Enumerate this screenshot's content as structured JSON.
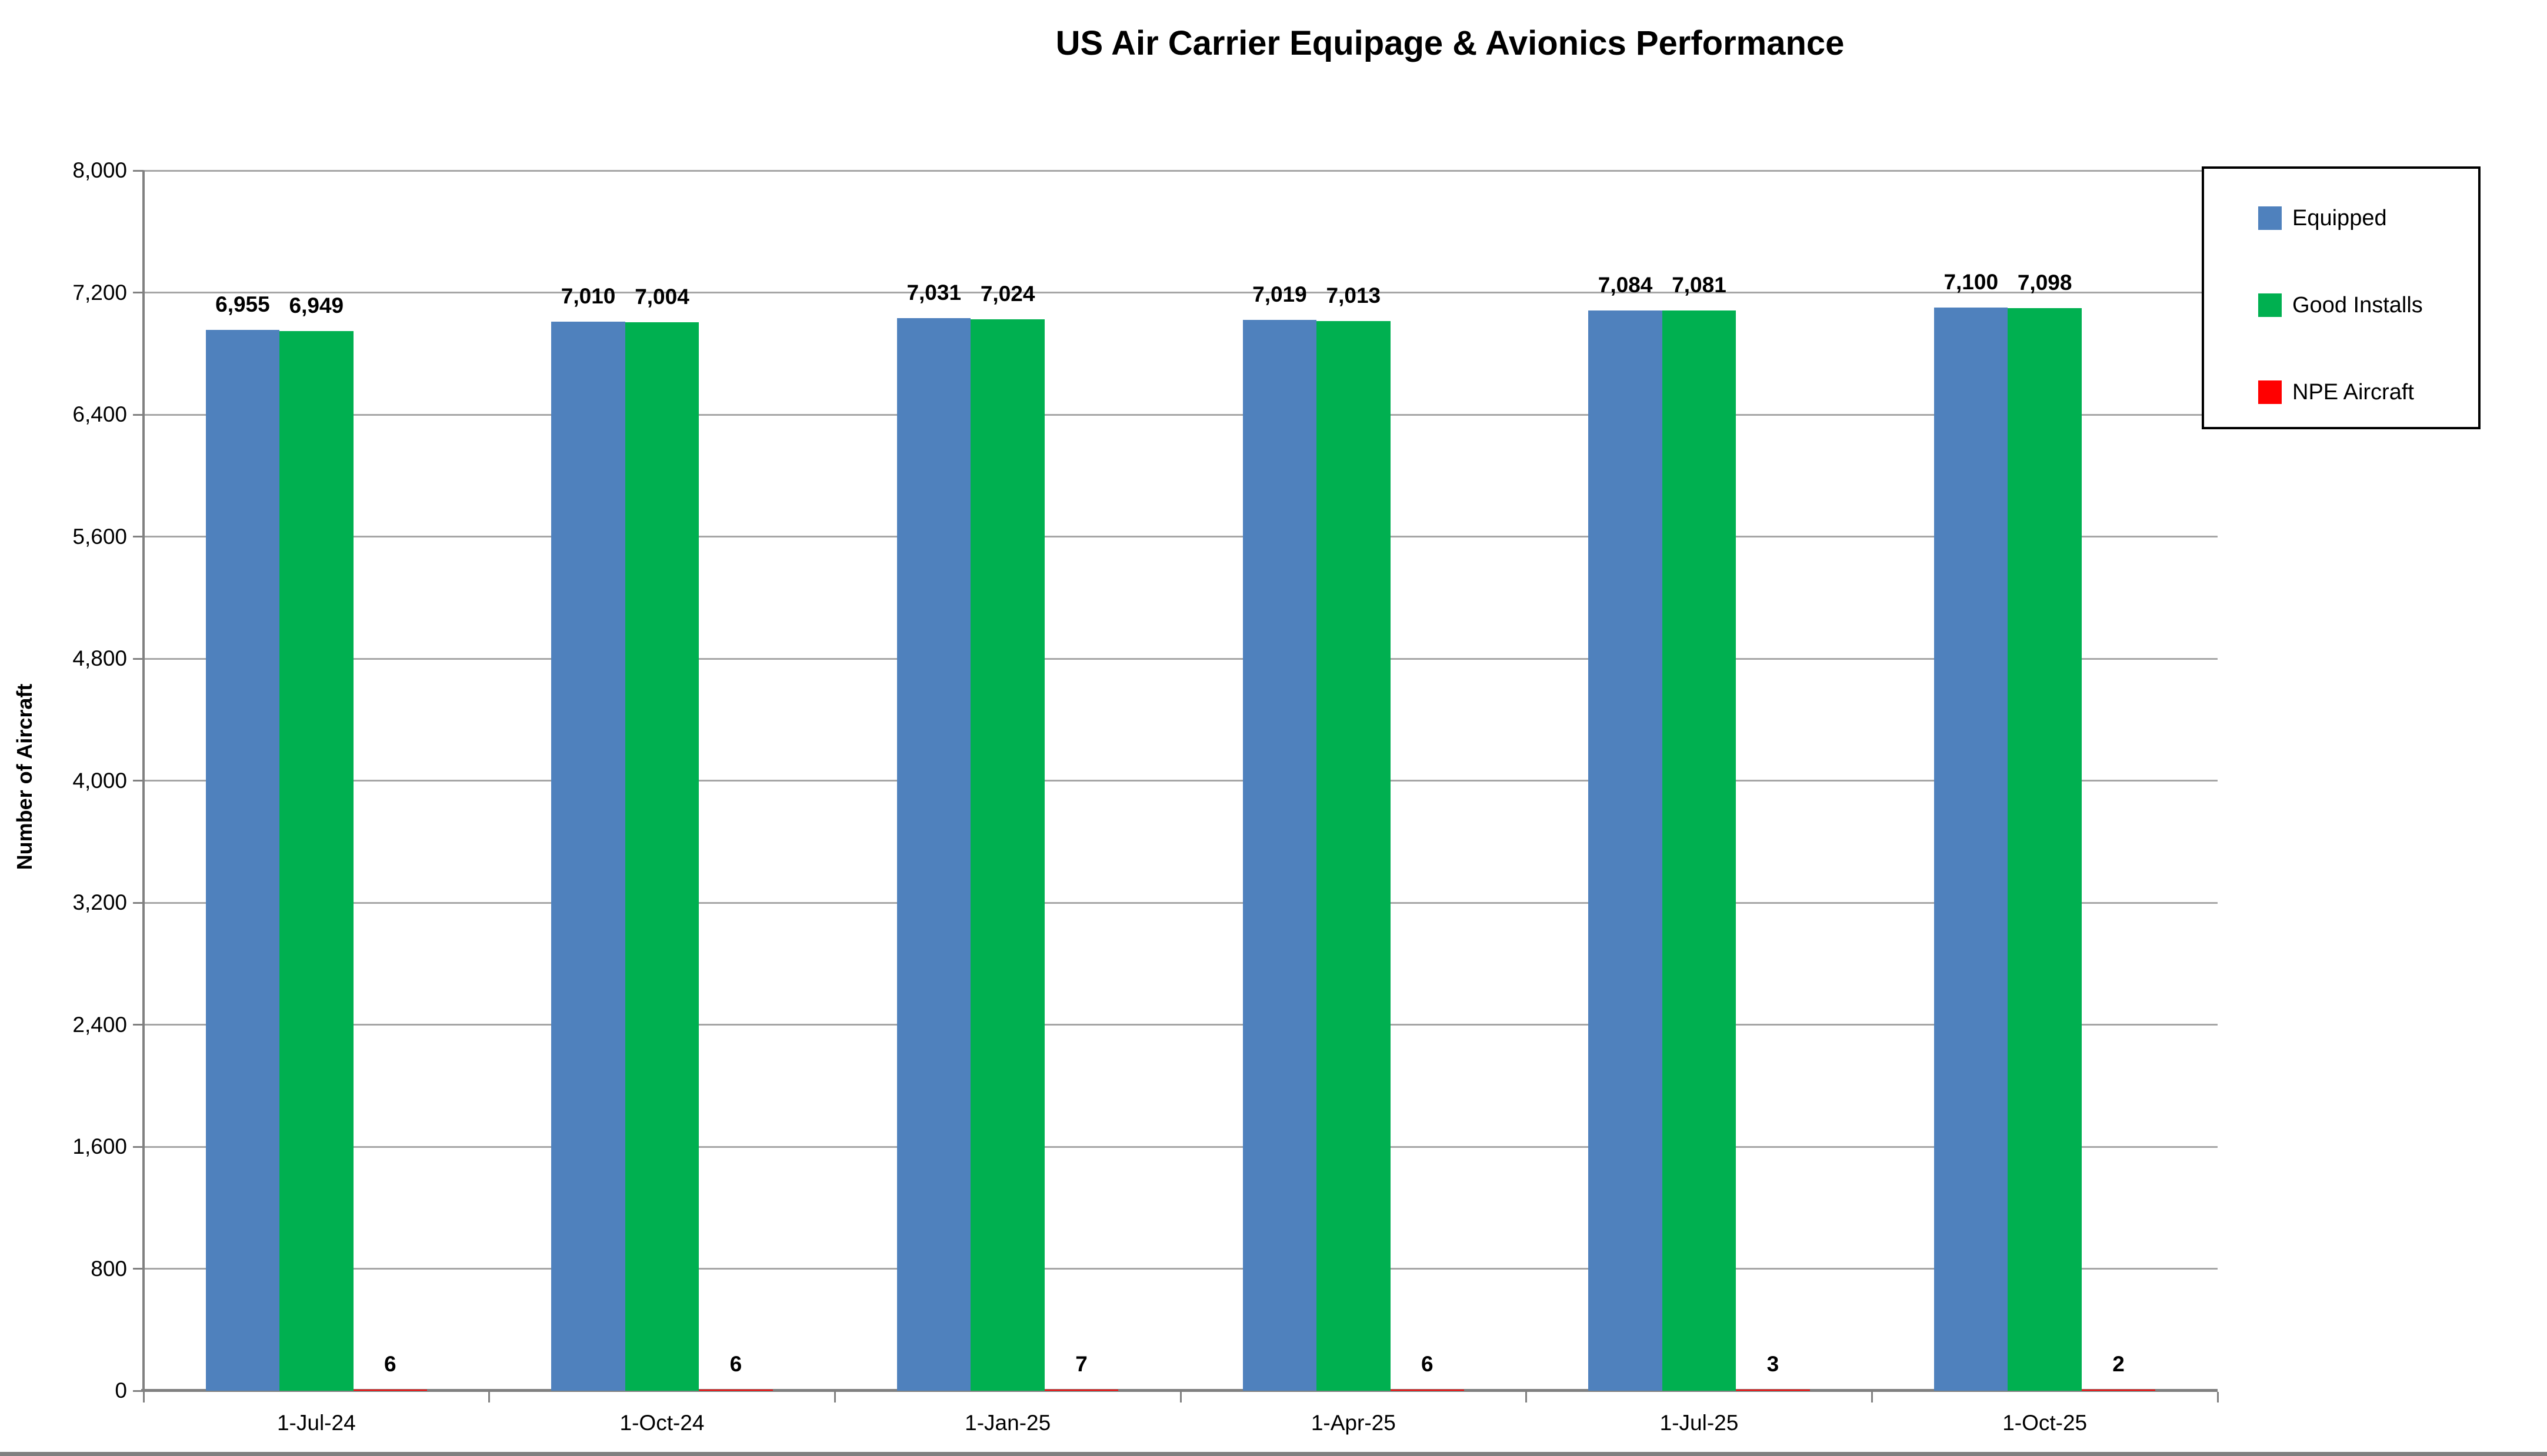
{
  "chart_data": {
    "type": "bar",
    "title": "US Air Carrier Equipage & Avionics Performance",
    "xlabel": "",
    "ylabel": "Number of Aircraft",
    "categories": [
      "1-Jul-24",
      "1-Oct-24",
      "1-Jan-25",
      "1-Apr-25",
      "1-Jul-25",
      "1-Oct-25"
    ],
    "series": [
      {
        "name": "Equipped",
        "color": "#4F81BD",
        "values": [
          6955,
          7010,
          7031,
          7019,
          7084,
          7100
        ],
        "labels": [
          "6,955",
          "7,010",
          "7,031",
          "7,019",
          "7,084",
          "7,100"
        ]
      },
      {
        "name": "Good Installs",
        "color": "#00B050",
        "values": [
          6949,
          7004,
          7024,
          7013,
          7081,
          7098
        ],
        "labels": [
          "6,949",
          "7,004",
          "7,024",
          "7,013",
          "7,081",
          "7,098"
        ]
      },
      {
        "name": "NPE Aircraft",
        "color": "#FF0000",
        "values": [
          6,
          6,
          7,
          6,
          3,
          2
        ],
        "labels": [
          "6",
          "6",
          "7",
          "6",
          "3",
          "2"
        ]
      }
    ],
    "y_axis": {
      "min": 0,
      "max": 8000,
      "step": 800,
      "tick_labels": [
        "0",
        "800",
        "1,600",
        "2,400",
        "3,200",
        "4,000",
        "4,800",
        "5,600",
        "6,400",
        "7,200",
        "8,000"
      ]
    },
    "legend_position": "right",
    "grid": true,
    "colors": {
      "gridline": "#A6A6A6",
      "axis": "#808080",
      "text": "#000000",
      "background": "#FFFFFF"
    }
  }
}
